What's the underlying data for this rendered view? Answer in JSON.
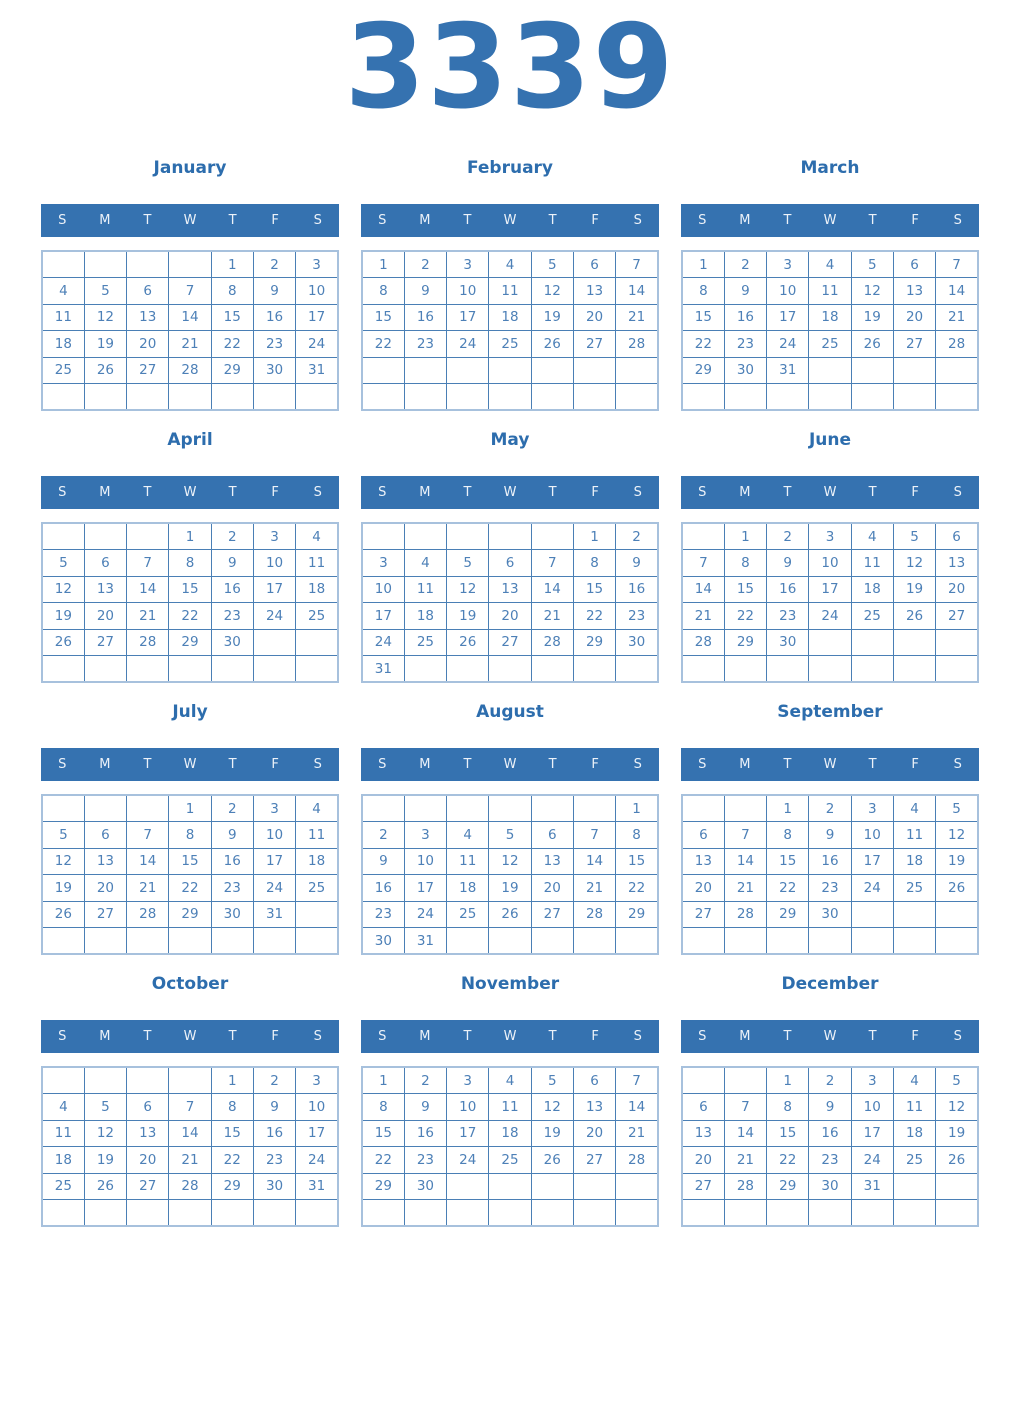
{
  "year": "3339",
  "weekday_headers": [
    "S",
    "M",
    "T",
    "W",
    "T",
    "F",
    "S"
  ],
  "colors": {
    "accent": "#3572b0",
    "title_color": "#2d6dad",
    "date_color": "#4d80b7",
    "inner_border": "#4a7fb5",
    "outer_border": "#a7c1dd",
    "weekday_color": "#ecf2f9",
    "page_bg": "#ffffff"
  },
  "months": [
    {
      "name": "January",
      "weeks": [
        [
          "",
          "",
          "",
          "",
          "1",
          "2",
          "3"
        ],
        [
          "4",
          "5",
          "6",
          "7",
          "8",
          "9",
          "10"
        ],
        [
          "11",
          "12",
          "13",
          "14",
          "15",
          "16",
          "17"
        ],
        [
          "18",
          "19",
          "20",
          "21",
          "22",
          "23",
          "24"
        ],
        [
          "25",
          "26",
          "27",
          "28",
          "29",
          "30",
          "31"
        ],
        [
          "",
          "",
          "",
          "",
          "",
          "",
          ""
        ]
      ]
    },
    {
      "name": "February",
      "weeks": [
        [
          "1",
          "2",
          "3",
          "4",
          "5",
          "6",
          "7"
        ],
        [
          "8",
          "9",
          "10",
          "11",
          "12",
          "13",
          "14"
        ],
        [
          "15",
          "16",
          "17",
          "18",
          "19",
          "20",
          "21"
        ],
        [
          "22",
          "23",
          "24",
          "25",
          "26",
          "27",
          "28"
        ],
        [
          "",
          "",
          "",
          "",
          "",
          "",
          ""
        ],
        [
          "",
          "",
          "",
          "",
          "",
          "",
          ""
        ]
      ]
    },
    {
      "name": "March",
      "weeks": [
        [
          "1",
          "2",
          "3",
          "4",
          "5",
          "6",
          "7"
        ],
        [
          "8",
          "9",
          "10",
          "11",
          "12",
          "13",
          "14"
        ],
        [
          "15",
          "16",
          "17",
          "18",
          "19",
          "20",
          "21"
        ],
        [
          "22",
          "23",
          "24",
          "25",
          "26",
          "27",
          "28"
        ],
        [
          "29",
          "30",
          "31",
          "",
          "",
          "",
          ""
        ],
        [
          "",
          "",
          "",
          "",
          "",
          "",
          ""
        ]
      ]
    },
    {
      "name": "April",
      "weeks": [
        [
          "",
          "",
          "",
          "1",
          "2",
          "3",
          "4"
        ],
        [
          "5",
          "6",
          "7",
          "8",
          "9",
          "10",
          "11"
        ],
        [
          "12",
          "13",
          "14",
          "15",
          "16",
          "17",
          "18"
        ],
        [
          "19",
          "20",
          "21",
          "22",
          "23",
          "24",
          "25"
        ],
        [
          "26",
          "27",
          "28",
          "29",
          "30",
          "",
          ""
        ],
        [
          "",
          "",
          "",
          "",
          "",
          "",
          ""
        ]
      ]
    },
    {
      "name": "May",
      "weeks": [
        [
          "",
          "",
          "",
          "",
          "",
          "1",
          "2"
        ],
        [
          "3",
          "4",
          "5",
          "6",
          "7",
          "8",
          "9"
        ],
        [
          "10",
          "11",
          "12",
          "13",
          "14",
          "15",
          "16"
        ],
        [
          "17",
          "18",
          "19",
          "20",
          "21",
          "22",
          "23"
        ],
        [
          "24",
          "25",
          "26",
          "27",
          "28",
          "29",
          "30"
        ],
        [
          "31",
          "",
          "",
          "",
          "",
          "",
          ""
        ]
      ]
    },
    {
      "name": "June",
      "weeks": [
        [
          "",
          "1",
          "2",
          "3",
          "4",
          "5",
          "6"
        ],
        [
          "7",
          "8",
          "9",
          "10",
          "11",
          "12",
          "13"
        ],
        [
          "14",
          "15",
          "16",
          "17",
          "18",
          "19",
          "20"
        ],
        [
          "21",
          "22",
          "23",
          "24",
          "25",
          "26",
          "27"
        ],
        [
          "28",
          "29",
          "30",
          "",
          "",
          "",
          ""
        ],
        [
          "",
          "",
          "",
          "",
          "",
          "",
          ""
        ]
      ]
    },
    {
      "name": "July",
      "weeks": [
        [
          "",
          "",
          "",
          "1",
          "2",
          "3",
          "4"
        ],
        [
          "5",
          "6",
          "7",
          "8",
          "9",
          "10",
          "11"
        ],
        [
          "12",
          "13",
          "14",
          "15",
          "16",
          "17",
          "18"
        ],
        [
          "19",
          "20",
          "21",
          "22",
          "23",
          "24",
          "25"
        ],
        [
          "26",
          "27",
          "28",
          "29",
          "30",
          "31",
          ""
        ],
        [
          "",
          "",
          "",
          "",
          "",
          "",
          ""
        ]
      ]
    },
    {
      "name": "August",
      "weeks": [
        [
          "",
          "",
          "",
          "",
          "",
          "",
          "1"
        ],
        [
          "2",
          "3",
          "4",
          "5",
          "6",
          "7",
          "8"
        ],
        [
          "9",
          "10",
          "11",
          "12",
          "13",
          "14",
          "15"
        ],
        [
          "16",
          "17",
          "18",
          "19",
          "20",
          "21",
          "22"
        ],
        [
          "23",
          "24",
          "25",
          "26",
          "27",
          "28",
          "29"
        ],
        [
          "30",
          "31",
          "",
          "",
          "",
          "",
          ""
        ]
      ]
    },
    {
      "name": "September",
      "weeks": [
        [
          "",
          "",
          "1",
          "2",
          "3",
          "4",
          "5"
        ],
        [
          "6",
          "7",
          "8",
          "9",
          "10",
          "11",
          "12"
        ],
        [
          "13",
          "14",
          "15",
          "16",
          "17",
          "18",
          "19"
        ],
        [
          "20",
          "21",
          "22",
          "23",
          "24",
          "25",
          "26"
        ],
        [
          "27",
          "28",
          "29",
          "30",
          "",
          "",
          ""
        ],
        [
          "",
          "",
          "",
          "",
          "",
          "",
          ""
        ]
      ]
    },
    {
      "name": "October",
      "weeks": [
        [
          "",
          "",
          "",
          "",
          "1",
          "2",
          "3"
        ],
        [
          "4",
          "5",
          "6",
          "7",
          "8",
          "9",
          "10"
        ],
        [
          "11",
          "12",
          "13",
          "14",
          "15",
          "16",
          "17"
        ],
        [
          "18",
          "19",
          "20",
          "21",
          "22",
          "23",
          "24"
        ],
        [
          "25",
          "26",
          "27",
          "28",
          "29",
          "30",
          "31"
        ],
        [
          "",
          "",
          "",
          "",
          "",
          "",
          ""
        ]
      ]
    },
    {
      "name": "November",
      "weeks": [
        [
          "1",
          "2",
          "3",
          "4",
          "5",
          "6",
          "7"
        ],
        [
          "8",
          "9",
          "10",
          "11",
          "12",
          "13",
          "14"
        ],
        [
          "15",
          "16",
          "17",
          "18",
          "19",
          "20",
          "21"
        ],
        [
          "22",
          "23",
          "24",
          "25",
          "26",
          "27",
          "28"
        ],
        [
          "29",
          "30",
          "",
          "",
          "",
          "",
          ""
        ],
        [
          "",
          "",
          "",
          "",
          "",
          "",
          ""
        ]
      ]
    },
    {
      "name": "December",
      "weeks": [
        [
          "",
          "",
          "1",
          "2",
          "3",
          "4",
          "5"
        ],
        [
          "6",
          "7",
          "8",
          "9",
          "10",
          "11",
          "12"
        ],
        [
          "13",
          "14",
          "15",
          "16",
          "17",
          "18",
          "19"
        ],
        [
          "20",
          "21",
          "22",
          "23",
          "24",
          "25",
          "26"
        ],
        [
          "27",
          "28",
          "29",
          "30",
          "31",
          "",
          ""
        ],
        [
          "",
          "",
          "",
          "",
          "",
          "",
          ""
        ]
      ]
    }
  ]
}
